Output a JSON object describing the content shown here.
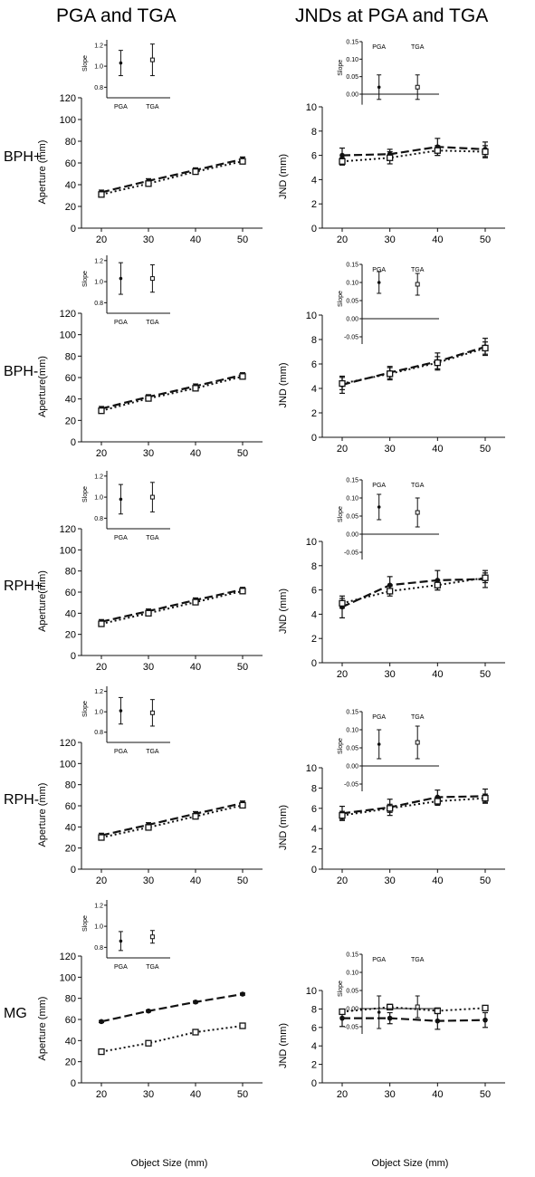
{
  "headers": {
    "left": "PGA and TGA",
    "right": "JNDs at PGA and TGA"
  },
  "x_axis_label": "Object Size (mm)",
  "chart_data": [
    {
      "type": "line",
      "panel": "aperture",
      "group": "BPH+",
      "ylabel": "Aperture (mm)",
      "ylim": [
        0,
        120
      ],
      "yticks": [
        0,
        20,
        40,
        60,
        80,
        100,
        120
      ],
      "x": [
        20,
        30,
        40,
        50
      ],
      "xticks": [
        20,
        30,
        40,
        50
      ],
      "series": [
        {
          "marker": "filled",
          "dash": "long",
          "values": [
            33,
            43.5,
            53.5,
            63.5
          ],
          "err": [
            2,
            2,
            2,
            2
          ]
        },
        {
          "marker": "open",
          "dash": "dot",
          "values": [
            31,
            41,
            52,
            61.5
          ],
          "err": [
            2,
            2,
            2,
            2
          ]
        }
      ],
      "inset": {
        "ylabel": "Slope",
        "ylim": [
          0.7,
          1.25
        ],
        "yticks": [
          0.8,
          1.0,
          1.2
        ],
        "baseline": 0.7,
        "categories": [
          "PGA",
          "TGA"
        ],
        "values": [
          1.03,
          1.06
        ],
        "err": [
          0.12,
          0.15
        ]
      }
    },
    {
      "type": "line",
      "panel": "jnd",
      "group": "BPH+",
      "ylabel": "JND (mm)",
      "ylim": [
        0,
        10
      ],
      "yticks": [
        0,
        2,
        4,
        6,
        8,
        10
      ],
      "x": [
        20,
        30,
        40,
        50
      ],
      "xticks": [
        20,
        30,
        40,
        50
      ],
      "series": [
        {
          "marker": "filled",
          "dash": "long",
          "values": [
            6.0,
            6.1,
            6.7,
            6.5
          ],
          "err": [
            0.6,
            0.4,
            0.7,
            0.6
          ]
        },
        {
          "marker": "open",
          "dash": "dot",
          "values": [
            5.5,
            5.8,
            6.4,
            6.3
          ],
          "err": [
            0.3,
            0.5,
            0.4,
            0.5
          ]
        }
      ],
      "inset": {
        "ylabel": "Slope",
        "ylim": [
          -0.03,
          0.15
        ],
        "yticks": [
          0.0,
          0.05,
          0.1,
          0.15
        ],
        "baseline": 0,
        "categories": [
          "PGA",
          "TGA"
        ],
        "values": [
          0.02,
          0.02
        ],
        "err": [
          0.035,
          0.035
        ]
      }
    },
    {
      "type": "line",
      "panel": "aperture",
      "group": "BPH-",
      "ylabel": "Aperture(mm)",
      "ylim": [
        0,
        120
      ],
      "yticks": [
        0,
        20,
        40,
        60,
        80,
        100,
        120
      ],
      "x": [
        20,
        30,
        40,
        50
      ],
      "xticks": [
        20,
        30,
        40,
        50
      ],
      "series": [
        {
          "marker": "filled",
          "dash": "long",
          "values": [
            31,
            42,
            52,
            62.5
          ],
          "err": [
            2,
            2,
            2,
            2
          ]
        },
        {
          "marker": "open",
          "dash": "dot",
          "values": [
            29,
            40.5,
            50,
            61
          ],
          "err": [
            2,
            2,
            2,
            2
          ]
        }
      ],
      "inset": {
        "ylabel": "Slope",
        "ylim": [
          0.7,
          1.25
        ],
        "yticks": [
          0.8,
          1.0,
          1.2
        ],
        "baseline": 0.7,
        "categories": [
          "PGA",
          "TGA"
        ],
        "values": [
          1.03,
          1.03
        ],
        "err": [
          0.15,
          0.13
        ]
      }
    },
    {
      "type": "line",
      "panel": "jnd",
      "group": "BPH-",
      "ylabel": "JND (mm)",
      "ylim": [
        0,
        10
      ],
      "yticks": [
        0,
        2,
        4,
        6,
        8,
        10
      ],
      "x": [
        20,
        30,
        40,
        50
      ],
      "xticks": [
        20,
        30,
        40,
        50
      ],
      "series": [
        {
          "marker": "filled",
          "dash": "long",
          "values": [
            4.3,
            5.3,
            6.2,
            7.4
          ],
          "err": [
            0.7,
            0.5,
            0.7,
            0.7
          ]
        },
        {
          "marker": "open",
          "dash": "dot",
          "values": [
            4.4,
            5.2,
            6.1,
            7.3
          ],
          "err": [
            0.5,
            0.5,
            0.5,
            0.5
          ]
        }
      ],
      "inset": {
        "ylabel": "Slope",
        "ylim": [
          -0.07,
          0.15
        ],
        "yticks": [
          -0.05,
          0.0,
          0.05,
          0.1,
          0.15
        ],
        "baseline": 0,
        "categories": [
          "PGA",
          "TGA"
        ],
        "values": [
          0.1,
          0.095
        ],
        "err": [
          0.03,
          0.03
        ]
      }
    },
    {
      "type": "line",
      "panel": "aperture",
      "group": "RPH+",
      "ylabel": "Aperture(mm)",
      "ylim": [
        0,
        120
      ],
      "yticks": [
        0,
        20,
        40,
        60,
        80,
        100,
        120
      ],
      "x": [
        20,
        30,
        40,
        50
      ],
      "xticks": [
        20,
        30,
        40,
        50
      ],
      "series": [
        {
          "marker": "filled",
          "dash": "long",
          "values": [
            32,
            42,
            52.5,
            62.5
          ],
          "err": [
            2,
            2,
            2,
            2
          ]
        },
        {
          "marker": "open",
          "dash": "dot",
          "values": [
            30,
            40,
            50.5,
            61
          ],
          "err": [
            2,
            2,
            2,
            2
          ]
        }
      ],
      "inset": {
        "ylabel": "Slope",
        "ylim": [
          0.7,
          1.25
        ],
        "yticks": [
          0.8,
          1.0,
          1.2
        ],
        "baseline": 0.7,
        "categories": [
          "PGA",
          "TGA"
        ],
        "values": [
          0.98,
          1.0
        ],
        "err": [
          0.14,
          0.14
        ]
      }
    },
    {
      "type": "line",
      "panel": "jnd",
      "group": "RPH+",
      "ylabel": "JND (mm)",
      "ylim": [
        0,
        10
      ],
      "yticks": [
        0,
        2,
        4,
        6,
        8,
        10
      ],
      "x": [
        20,
        30,
        40,
        50
      ],
      "xticks": [
        20,
        30,
        40,
        50
      ],
      "series": [
        {
          "marker": "filled",
          "dash": "long",
          "values": [
            4.6,
            6.4,
            6.8,
            6.9
          ],
          "err": [
            0.9,
            0.7,
            0.8,
            0.7
          ]
        },
        {
          "marker": "open",
          "dash": "dot",
          "values": [
            4.9,
            5.9,
            6.4,
            7.0
          ],
          "err": [
            0.4,
            0.4,
            0.4,
            0.4
          ]
        }
      ],
      "inset": {
        "ylabel": "Slope",
        "ylim": [
          -0.07,
          0.15
        ],
        "yticks": [
          -0.05,
          0.0,
          0.05,
          0.1,
          0.15
        ],
        "baseline": 0,
        "categories": [
          "PGA",
          "TGA"
        ],
        "values": [
          0.075,
          0.06
        ],
        "err": [
          0.035,
          0.04
        ]
      }
    },
    {
      "type": "line",
      "panel": "aperture",
      "group": "RPH-",
      "ylabel": "Aperture (mm)",
      "ylim": [
        0,
        120
      ],
      "yticks": [
        0,
        20,
        40,
        60,
        80,
        100,
        120
      ],
      "x": [
        20,
        30,
        40,
        50
      ],
      "xticks": [
        20,
        30,
        40,
        50
      ],
      "series": [
        {
          "marker": "filled",
          "dash": "long",
          "values": [
            32,
            42,
            52.5,
            62.5
          ],
          "err": [
            2,
            2,
            2,
            2
          ]
        },
        {
          "marker": "open",
          "dash": "dot",
          "values": [
            30,
            39.5,
            50,
            60.5
          ],
          "err": [
            2,
            2,
            2,
            2
          ]
        }
      ],
      "inset": {
        "ylabel": "Slope",
        "ylim": [
          0.7,
          1.25
        ],
        "yticks": [
          0.8,
          1.0,
          1.2
        ],
        "baseline": 0.7,
        "categories": [
          "PGA",
          "TGA"
        ],
        "values": [
          1.01,
          0.99
        ],
        "err": [
          0.13,
          0.13
        ]
      }
    },
    {
      "type": "line",
      "panel": "jnd",
      "group": "RPH-",
      "ylabel": "JND (mm)",
      "ylim": [
        0,
        10
      ],
      "yticks": [
        0,
        2,
        4,
        6,
        8,
        10
      ],
      "x": [
        20,
        30,
        40,
        50
      ],
      "xticks": [
        20,
        30,
        40,
        50
      ],
      "series": [
        {
          "marker": "filled",
          "dash": "long",
          "values": [
            5.5,
            6.1,
            7.1,
            7.2
          ],
          "err": [
            0.7,
            0.8,
            0.7,
            0.7
          ]
        },
        {
          "marker": "open",
          "dash": "dot",
          "values": [
            5.3,
            6.0,
            6.7,
            7.0
          ],
          "err": [
            0.4,
            0.4,
            0.4,
            0.4
          ]
        }
      ],
      "inset": {
        "ylabel": "Slope",
        "ylim": [
          -0.07,
          0.15
        ],
        "yticks": [
          -0.05,
          0.0,
          0.05,
          0.1,
          0.15
        ],
        "baseline": 0,
        "categories": [
          "PGA",
          "TGA"
        ],
        "values": [
          0.06,
          0.065
        ],
        "err": [
          0.04,
          0.045
        ]
      }
    },
    {
      "type": "line",
      "panel": "aperture",
      "group": "MG",
      "ylabel": "Aperture (mm)",
      "ylim": [
        0,
        120
      ],
      "yticks": [
        0,
        20,
        40,
        60,
        80,
        100,
        120
      ],
      "x": [
        20,
        30,
        40,
        50
      ],
      "xticks": [
        20,
        30,
        40,
        50
      ],
      "series": [
        {
          "marker": "filled",
          "dash": "long",
          "values": [
            58,
            68,
            76.5,
            84
          ],
          "err": [
            1,
            1,
            1,
            1
          ]
        },
        {
          "marker": "open",
          "dash": "dot",
          "values": [
            29.5,
            37.5,
            48,
            54
          ],
          "err": [
            2,
            2,
            2,
            2
          ]
        }
      ],
      "inset": {
        "ylabel": "Slope",
        "ylim": [
          0.7,
          1.25
        ],
        "yticks": [
          0.8,
          1.0,
          1.2
        ],
        "baseline": 0.7,
        "categories": [
          "PGA",
          "TGA"
        ],
        "values": [
          0.86,
          0.9
        ],
        "err": [
          0.09,
          0.06
        ]
      }
    },
    {
      "type": "line",
      "panel": "jnd",
      "group": "MG",
      "ylabel": "JND (mm)",
      "ylim": [
        0,
        10
      ],
      "yticks": [
        0,
        2,
        4,
        6,
        8,
        10
      ],
      "x": [
        20,
        30,
        40,
        50
      ],
      "xticks": [
        20,
        30,
        40,
        50
      ],
      "series": [
        {
          "marker": "filled",
          "dash": "long",
          "values": [
            7.0,
            7.0,
            6.7,
            6.8
          ],
          "err": [
            0.9,
            0.6,
            0.9,
            0.8
          ]
        },
        {
          "marker": "open",
          "dash": "dot",
          "values": [
            7.7,
            8.2,
            7.8,
            8.1
          ],
          "err": [
            0.2,
            0.3,
            0.3,
            0.2
          ]
        }
      ],
      "inset": {
        "ylabel": "Slope",
        "ylim": [
          -0.07,
          0.15
        ],
        "yticks": [
          -0.05,
          0.0,
          0.05,
          0.1,
          0.15
        ],
        "baseline": 0,
        "categories": [
          "PGA",
          "TGA"
        ],
        "values": [
          -0.01,
          0.005
        ],
        "err": [
          0.045,
          0.03
        ]
      }
    }
  ]
}
